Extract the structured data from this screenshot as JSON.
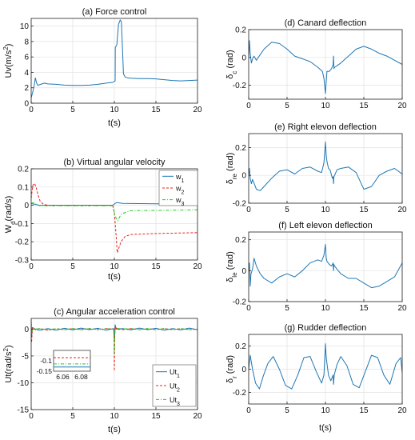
{
  "figure": {
    "background": "#ffffff",
    "axis_color": "#222222",
    "grid_color": "#e2e2e2"
  },
  "chart_data": [
    {
      "id": "a",
      "type": "line",
      "title": "(a) Force control",
      "xlabel": "t(s)",
      "ylabel": "Uv(m/s^2)",
      "xlim": [
        0,
        20
      ],
      "ylim": [
        0,
        11
      ],
      "xticks": [
        0,
        5,
        10,
        15,
        20
      ],
      "yticks": [
        0,
        2,
        4,
        6,
        8,
        10
      ],
      "grid": true,
      "series": [
        {
          "color": "#1f77b4",
          "dash": "",
          "x": [
            0,
            0.15,
            0.35,
            0.5,
            0.65,
            0.8,
            1.0,
            1.3,
            1.6,
            2,
            3,
            4,
            5,
            6,
            7,
            8,
            9,
            9.8,
            10.1,
            10.12,
            10.3,
            10.5,
            10.7,
            10.85,
            11.0,
            11.1,
            11.3,
            11.6,
            12,
            13,
            14,
            15,
            16,
            17,
            18,
            19,
            20
          ],
          "y": [
            0.7,
            1.3,
            2.2,
            3.3,
            2.6,
            2.3,
            2.4,
            2.5,
            2.6,
            2.5,
            2.45,
            2.35,
            2.3,
            2.3,
            2.35,
            2.45,
            2.6,
            2.7,
            2.9,
            7.2,
            7.6,
            10.2,
            10.8,
            10.6,
            6.5,
            3.8,
            3.4,
            3.3,
            3.25,
            3.2,
            3.2,
            3.15,
            3.05,
            2.95,
            2.9,
            2.95,
            3.0
          ]
        }
      ]
    },
    {
      "id": "b",
      "type": "line",
      "title": "(b) Virtual angular velocity",
      "xlabel": "t(s)",
      "ylabel": "W_d(rad/s)",
      "xlim": [
        0,
        20
      ],
      "ylim": [
        -0.3,
        0.2
      ],
      "xticks": [
        0,
        5,
        10,
        15,
        20
      ],
      "yticks": [
        -0.3,
        -0.2,
        -0.1,
        0,
        0.1,
        0.2
      ],
      "grid": true,
      "legend_position": "top-right",
      "series": [
        {
          "name": "w_1",
          "color": "#1f77b4",
          "dash": "",
          "x": [
            0,
            0.5,
            1,
            2,
            5,
            9.8,
            10.1,
            10.3,
            11,
            15,
            20
          ],
          "y": [
            0.01,
            0.005,
            0.0,
            0.0,
            0.0,
            0.0,
            0.01,
            0.015,
            0.01,
            0.008,
            0.006
          ]
        },
        {
          "name": "w_2",
          "color": "#e8231f",
          "dash": "3,2",
          "x": [
            0,
            0.2,
            0.4,
            0.6,
            0.8,
            1.1,
            1.5,
            2,
            5,
            9.8,
            10.0,
            10.2,
            10.35,
            10.5,
            10.8,
            11.3,
            12,
            15,
            20
          ],
          "y": [
            0.04,
            0.11,
            0.12,
            0.1,
            0.06,
            0.02,
            0.005,
            0.0,
            0.0,
            0.0,
            -0.04,
            -0.16,
            -0.26,
            -0.24,
            -0.2,
            -0.17,
            -0.16,
            -0.155,
            -0.15
          ]
        },
        {
          "name": "w_3",
          "color": "#22cc22",
          "dash": "4,2,1,2",
          "x": [
            0,
            0.3,
            0.6,
            1,
            2,
            5,
            9.8,
            10.1,
            10.4,
            10.8,
            11.5,
            12,
            15,
            20
          ],
          "y": [
            0.01,
            0.015,
            0.005,
            -0.002,
            -0.003,
            -0.003,
            -0.003,
            -0.06,
            -0.085,
            -0.05,
            -0.035,
            -0.03,
            -0.028,
            -0.025
          ]
        }
      ]
    },
    {
      "id": "c",
      "type": "line",
      "title": "(c) Angular acceleration control",
      "xlabel": "t(s)",
      "ylabel": "Ut(rad/s^2)",
      "xlim": [
        0,
        20
      ],
      "ylim": [
        -15,
        2
      ],
      "xticks": [
        0,
        5,
        10,
        15,
        20
      ],
      "yticks": [
        -15,
        -10,
        -5,
        0
      ],
      "grid": true,
      "legend_position": "bottom-right",
      "series": [
        {
          "name": "Ut_1",
          "color": "#1f77b4",
          "dash": "",
          "x": [
            0,
            0.05,
            0.15,
            0.5,
            1,
            2,
            3,
            4,
            5,
            6,
            7,
            8,
            9,
            9.9,
            10.0,
            10.1,
            10.2,
            11,
            12,
            13,
            14,
            15,
            16,
            17,
            18,
            19,
            20
          ],
          "y": [
            1.5,
            -1.5,
            0.3,
            0.0,
            -0.2,
            0.1,
            -0.2,
            0.15,
            -0.15,
            0.2,
            -0.1,
            0.15,
            -0.2,
            0.1,
            -2.0,
            0.8,
            0.0,
            0.1,
            -0.15,
            0.2,
            -0.1,
            0.15,
            -0.2,
            0.1,
            -0.15,
            0.2,
            -0.1
          ]
        },
        {
          "name": "Ut_2",
          "color": "#e8231f",
          "dash": "3,2",
          "x": [
            0,
            0.05,
            0.15,
            0.5,
            1,
            2,
            3,
            4,
            5,
            6,
            7,
            8,
            9,
            9.95,
            10.0,
            10.05,
            10.1,
            10.3,
            11,
            12,
            13,
            14,
            15,
            16,
            17,
            18,
            19,
            20
          ],
          "y": [
            1.8,
            -2.5,
            0.3,
            -0.1,
            0.1,
            -0.2,
            0.1,
            -0.1,
            0.1,
            -0.1,
            0.1,
            -0.1,
            0.1,
            0.0,
            -7.8,
            -1.5,
            0.5,
            0.0,
            -0.1,
            0.1,
            -0.1,
            0.1,
            -0.1,
            0.1,
            -0.1,
            0.1,
            -0.1,
            0.0
          ]
        },
        {
          "name": "Ut_3",
          "color": "#22cc22",
          "dash": "4,2,1,2",
          "x": [
            0,
            0.05,
            0.15,
            0.5,
            1,
            2,
            3,
            4,
            5,
            6,
            7,
            8,
            9,
            9.95,
            10.0,
            10.05,
            10.15,
            11,
            12,
            13,
            14,
            15,
            16,
            17,
            18,
            19,
            20
          ],
          "y": [
            1.2,
            -1.0,
            0.2,
            0.0,
            0.1,
            -0.1,
            0.1,
            -0.1,
            0.1,
            -0.1,
            0.1,
            -0.1,
            0.1,
            0.0,
            -4.5,
            -0.8,
            0.2,
            0.0,
            0.1,
            -0.1,
            0.1,
            -0.1,
            0.1,
            -0.1,
            0.1,
            -0.1,
            0.0
          ]
        }
      ],
      "inset": {
        "xlim": [
          6.05,
          6.09
        ],
        "ylim": [
          -0.15,
          -0.05
        ],
        "xticks": [
          6.06,
          6.08
        ],
        "yticks": [
          -0.15,
          -0.1
        ],
        "series": [
          {
            "color": "#1f77b4",
            "dash": "",
            "x": [
              6.05,
              6.09
            ],
            "y": [
              -0.13,
              -0.13
            ]
          },
          {
            "color": "#e8231f",
            "dash": "3,2",
            "x": [
              6.05,
              6.09
            ],
            "y": [
              -0.085,
              -0.085
            ]
          },
          {
            "color": "#22cc22",
            "dash": "4,2,1,2",
            "x": [
              6.05,
              6.09
            ],
            "y": [
              -0.115,
              -0.115
            ]
          }
        ]
      }
    },
    {
      "id": "d",
      "type": "line",
      "title": "(d) Canard deflection",
      "xlabel": "",
      "ylabel": "δ_c (rad)",
      "xlim": [
        0,
        20
      ],
      "ylim": [
        -0.3,
        0.2
      ],
      "xticks": [
        0,
        5,
        10,
        15,
        20
      ],
      "yticks": [
        -0.2,
        0,
        0.2
      ],
      "grid": true,
      "series": [
        {
          "color": "#1f77b4",
          "dash": "",
          "x": [
            0,
            0.1,
            0.2,
            0.35,
            0.5,
            0.7,
            1.0,
            1.5,
            2,
            3,
            4,
            5,
            6,
            7,
            8,
            9,
            9.6,
            9.8,
            10.0,
            10.1,
            10.2,
            10.35,
            10.5,
            10.8,
            11.0,
            11.05,
            11.1,
            11.2,
            11.5,
            12,
            13,
            14,
            15,
            16,
            17,
            18,
            19,
            20
          ],
          "y": [
            0.0,
            0.12,
            0.03,
            -0.04,
            -0.01,
            0.01,
            -0.02,
            0.02,
            0.06,
            0.11,
            0.1,
            0.06,
            0.01,
            -0.01,
            -0.03,
            -0.07,
            -0.1,
            -0.15,
            -0.26,
            -0.17,
            -0.1,
            -0.1,
            -0.1,
            -0.08,
            -0.05,
            0.01,
            -0.08,
            -0.07,
            -0.06,
            -0.04,
            0.01,
            0.06,
            0.08,
            0.06,
            0.03,
            0.01,
            -0.02,
            -0.05
          ]
        }
      ]
    },
    {
      "id": "e",
      "type": "line",
      "title": "(e) Right elevon deflection",
      "xlabel": "",
      "ylabel": "δ_re (rad)",
      "xlim": [
        0,
        20
      ],
      "ylim": [
        -0.2,
        0.3
      ],
      "xticks": [
        0,
        5,
        10,
        15,
        20
      ],
      "yticks": [
        -0.2,
        0,
        0.2
      ],
      "grid": true,
      "series": [
        {
          "color": "#1f77b4",
          "dash": "",
          "x": [
            0,
            0.1,
            0.2,
            0.35,
            0.5,
            0.8,
            1.0,
            1.5,
            2,
            3,
            4,
            5,
            6,
            7,
            8,
            9,
            9.5,
            9.8,
            10.0,
            10.1,
            10.2,
            10.4,
            10.6,
            10.9,
            11.0,
            11.05,
            11.1,
            11.2,
            11.5,
            12,
            13,
            14,
            15,
            16,
            17,
            18,
            19,
            20
          ],
          "y": [
            0.0,
            0.05,
            -0.02,
            -0.06,
            -0.03,
            -0.07,
            -0.1,
            -0.11,
            -0.08,
            -0.02,
            0.03,
            0.04,
            0.01,
            0.05,
            0.06,
            0.03,
            0.02,
            0.09,
            0.24,
            0.14,
            0.1,
            0.05,
            0.04,
            -0.02,
            -0.01,
            -0.06,
            -0.01,
            0.0,
            0.04,
            0.05,
            0.06,
            0.02,
            -0.1,
            -0.08,
            0.0,
            0.03,
            0.05,
            0.01
          ]
        }
      ]
    },
    {
      "id": "f",
      "type": "line",
      "title": "(f) Left elevon deflection",
      "xlabel": "",
      "ylabel": "δ_le (rad)",
      "xlim": [
        0,
        20
      ],
      "ylim": [
        -0.2,
        0.25
      ],
      "xticks": [
        0,
        5,
        10,
        15,
        20
      ],
      "yticks": [
        -0.2,
        0,
        0.2
      ],
      "grid": true,
      "series": [
        {
          "color": "#1f77b4",
          "dash": "",
          "x": [
            0,
            0.1,
            0.2,
            0.3,
            0.5,
            0.7,
            1.0,
            1.5,
            2,
            3,
            4,
            5,
            6,
            7,
            8,
            9,
            9.5,
            9.8,
            10.0,
            10.1,
            10.2,
            10.5,
            10.8,
            11.0,
            11.05,
            11.1,
            11.2,
            11.5,
            12,
            13,
            14,
            15,
            16,
            17,
            18,
            19,
            20
          ],
          "y": [
            0.0,
            0.05,
            -0.1,
            -0.02,
            0.01,
            0.08,
            0.03,
            -0.02,
            -0.05,
            -0.08,
            -0.04,
            -0.02,
            -0.04,
            0.0,
            0.05,
            0.07,
            0.06,
            0.1,
            0.17,
            0.08,
            0.06,
            0.04,
            0.03,
            0.05,
            0.0,
            0.04,
            0.03,
            0.01,
            -0.02,
            -0.05,
            -0.05,
            -0.08,
            -0.11,
            -0.1,
            -0.07,
            -0.04,
            0.05
          ]
        }
      ]
    },
    {
      "id": "g",
      "type": "line",
      "title": "(g) Rudder deflection",
      "xlabel": "t(s)",
      "ylabel": "δ_r (rad)",
      "xlim": [
        0,
        20
      ],
      "ylim": [
        -0.3,
        0.3
      ],
      "xticks": [
        0,
        5,
        10,
        15,
        20
      ],
      "yticks": [
        -0.2,
        0,
        0.2
      ],
      "grid": true,
      "series": [
        {
          "color": "#1f77b4",
          "dash": "",
          "x": [
            0,
            0.2,
            0.5,
            0.9,
            1.4,
            1.9,
            2.5,
            3.2,
            4.0,
            4.8,
            5.6,
            6.4,
            7.2,
            8.0,
            8.8,
            9.5,
            9.8,
            10.0,
            10.1,
            10.2,
            10.4,
            10.7,
            11.0,
            11.05,
            11.15,
            11.5,
            12.0,
            12.8,
            13.6,
            14.4,
            15.2,
            16.0,
            16.8,
            17.6,
            18.4,
            19.2,
            19.8,
            20
          ],
          "y": [
            0.0,
            0.12,
            0.0,
            -0.12,
            -0.17,
            -0.06,
            0.05,
            0.11,
            0.0,
            -0.14,
            -0.17,
            -0.05,
            0.1,
            0.11,
            -0.02,
            -0.12,
            -0.05,
            0.22,
            0.1,
            0.05,
            -0.05,
            -0.1,
            -0.05,
            -0.13,
            -0.05,
            0.04,
            0.11,
            0.03,
            -0.13,
            -0.16,
            -0.02,
            0.12,
            0.1,
            -0.05,
            -0.13,
            0.05,
            0.1,
            -0.03
          ]
        }
      ]
    }
  ]
}
